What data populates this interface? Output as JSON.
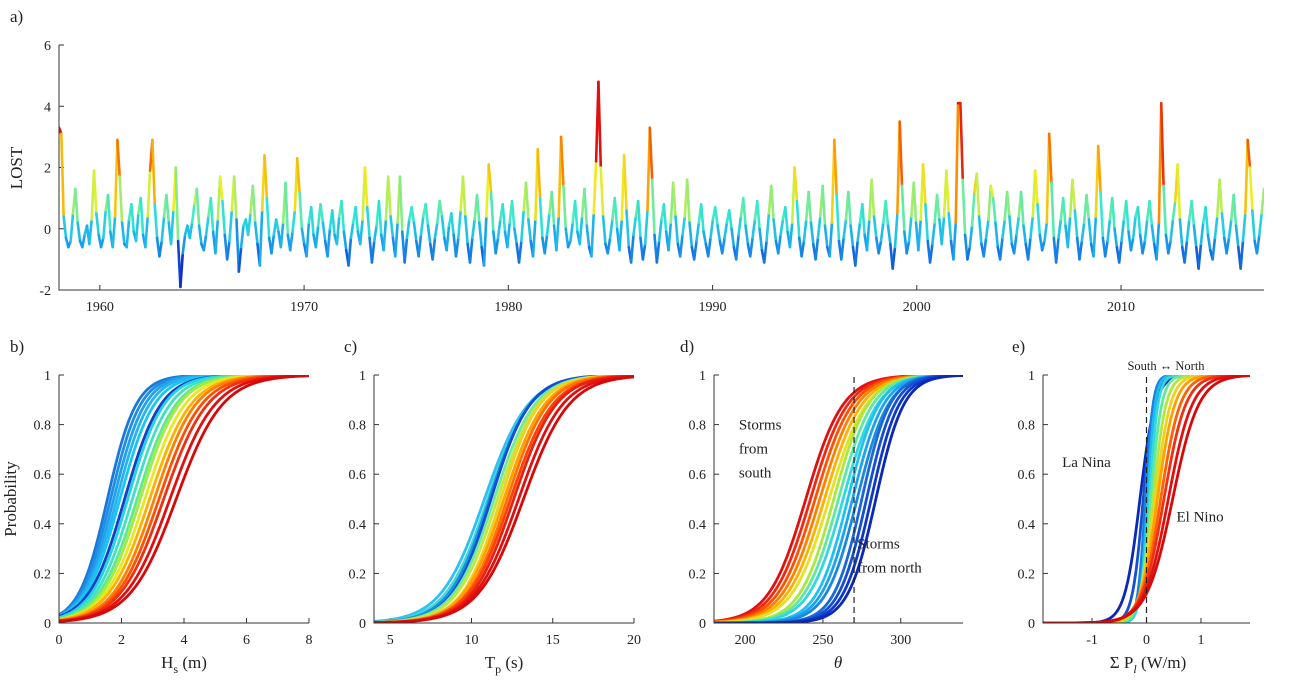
{
  "chart_data": [
    {
      "id": "a",
      "panel_label": "a)",
      "type": "line",
      "ylabel": "LOST",
      "xlim": [
        1958,
        2017
      ],
      "ylim": [
        -2,
        6
      ],
      "xticks": [
        1960,
        1970,
        1980,
        1990,
        2000,
        2010
      ],
      "yticks": [
        -2,
        0,
        2,
        4,
        6
      ],
      "colormap": [
        "#1030c8",
        "#18a0f0",
        "#30e8d8",
        "#f0f020",
        "#ff8c00",
        "#e01010"
      ],
      "series": [
        {
          "values": [
            3.3,
            3.1,
            0.4,
            -0.3,
            -0.6,
            -0.4,
            0.5,
            1.3,
            0.2,
            -0.4,
            -0.6,
            -0.2,
            0.1,
            -0.5,
            0.3,
            1.9,
            0.5,
            -0.2,
            -0.6,
            -0.3,
            0.6,
            1.1,
            -0.1,
            -0.6,
            0.4,
            2.9,
            1.7,
            0.2,
            -0.5,
            -0.6,
            0.3,
            0.8,
            -0.1,
            -0.4,
            0.5,
            1.0,
            -0.2,
            -0.6,
            0.4,
            1.9,
            2.9,
            0.8,
            -0.3,
            -0.9,
            -0.4,
            0.4,
            1.1,
            0.2,
            -0.5,
            0.6,
            2.0,
            -0.4,
            -1.9,
            -0.8,
            -0.2,
            0.1,
            -0.3,
            0.2,
            0.8,
            1.3,
            0.1,
            -0.5,
            -0.7,
            -0.2,
            0.4,
            1.0,
            -0.1,
            -0.8,
            0.3,
            1.7,
            0.9,
            -0.2,
            -1.0,
            -0.4,
            0.6,
            1.7,
            0.3,
            -1.4,
            -0.6,
            0.1,
            0.3,
            -0.2,
            0.5,
            1.4,
            0.2,
            -0.5,
            -1.2,
            0.6,
            2.4,
            1.0,
            -0.3,
            -0.8,
            -0.2,
            0.3,
            -0.1,
            -0.6,
            0.2,
            1.5,
            -0.2,
            -0.7,
            -0.1,
            0.6,
            2.3,
            1.2,
            0.0,
            -0.5,
            -0.9,
            0.2,
            0.7,
            -0.2,
            -0.6,
            0.1,
            0.8,
            0.2,
            -0.4,
            -0.9,
            0.0,
            0.6,
            -0.2,
            -0.5,
            0.4,
            0.9,
            -0.1,
            -0.7,
            -1.2,
            -0.3,
            0.2,
            0.7,
            -0.1,
            -0.5,
            0.3,
            2.0,
            0.7,
            -0.3,
            -1.1,
            -0.4,
            0.1,
            0.9,
            -0.2,
            -0.7,
            0.3,
            1.7,
            0.4,
            -0.3,
            -0.9,
            0.2,
            1.7,
            -0.1,
            -1.1,
            -0.3,
            0.3,
            0.7,
            0.2,
            -0.4,
            -0.9,
            -0.2,
            0.4,
            0.8,
            0.1,
            -0.5,
            -1.0,
            -0.3,
            0.2,
            0.9,
            0.4,
            -0.3,
            -0.7,
            0.1,
            0.5,
            -0.2,
            -0.9,
            -0.3,
            0.6,
            1.7,
            0.4,
            -0.5,
            -1.1,
            -0.3,
            0.3,
            1.1,
            0.2,
            -0.6,
            -1.2,
            0.4,
            2.1,
            1.2,
            -0.1,
            -0.8,
            -0.3,
            0.3,
            0.8,
            -0.1,
            -0.6,
            0.2,
            0.9,
            0.0,
            -0.5,
            -1.1,
            -0.4,
            0.6,
            1.5,
            0.3,
            -0.4,
            -0.9,
            0.3,
            2.6,
            1.0,
            -0.3,
            -0.8,
            -0.2,
            0.5,
            1.2,
            0.1,
            -0.7,
            0.4,
            3.0,
            1.4,
            0.0,
            -0.6,
            -0.4,
            0.2,
            0.9,
            -0.1,
            -0.5,
            0.4,
            1.3,
            0.1,
            -0.6,
            -0.9,
            0.5,
            2.2,
            4.8,
            2.0,
            0.4,
            -0.5,
            -0.8,
            -0.3,
            0.3,
            1.0,
            0.0,
            -0.7,
            0.3,
            2.4,
            0.6,
            -0.6,
            -1.1,
            -0.2,
            0.4,
            0.9,
            -0.3,
            -1.0,
            -0.5,
            0.6,
            3.3,
            1.6,
            -0.2,
            -1.1,
            -0.4,
            0.3,
            0.8,
            -0.1,
            -0.7,
            0.2,
            1.5,
            0.4,
            -0.5,
            -0.9,
            -0.2,
            0.4,
            1.6,
            0.2,
            -0.6,
            -1.0,
            -0.4,
            0.2,
            0.8,
            -0.1,
            -0.5,
            -0.9,
            -0.3,
            0.3,
            0.7,
            0.1,
            -0.4,
            -0.8,
            -0.3,
            0.2,
            0.6,
            0.0,
            -0.6,
            -1.0,
            -0.2,
            0.4,
            1.0,
            0.1,
            -0.5,
            -0.9,
            -0.3,
            0.3,
            0.9,
            0.0,
            -0.7,
            -1.1,
            -0.4,
            0.5,
            1.4,
            0.3,
            -0.4,
            -0.8,
            -0.2,
            0.3,
            0.7,
            -0.1,
            -0.6,
            0.2,
            2.0,
            0.9,
            -0.3,
            -0.9,
            -0.4,
            0.3,
            1.2,
            0.2,
            -0.5,
            -1.0,
            -0.3,
            0.4,
            1.4,
            0.1,
            -0.6,
            -0.9,
            0.2,
            2.9,
            1.1,
            -0.4,
            -1.0,
            -0.3,
            0.3,
            1.2,
            0.1,
            -0.6,
            -1.2,
            -0.4,
            0.2,
            0.8,
            -0.2,
            -0.7,
            0.3,
            1.6,
            0.4,
            -0.3,
            -0.8,
            -0.4,
            0.2,
            0.9,
            0.1,
            -0.5,
            -1.3,
            -0.6,
            0.5,
            3.5,
            1.4,
            -0.1,
            -0.8,
            -0.4,
            0.4,
            1.5,
            0.2,
            -0.7,
            0.3,
            2.1,
            0.8,
            -0.4,
            -1.1,
            -0.5,
            0.2,
            1.1,
            0.3,
            -0.5,
            0.4,
            1.9,
            0.5,
            -0.4,
            -1.0,
            0.2,
            4.1,
            4.1,
            1.6,
            -0.2,
            -1.0,
            -0.6,
            0.1,
            1.2,
            1.8,
            0.4,
            -0.5,
            -0.9,
            -0.3,
            0.3,
            1.4,
            1.0,
            0.2,
            -0.6,
            -1.0,
            -0.3,
            0.3,
            1.2,
            0.4,
            -0.5,
            -0.8,
            -0.2,
            0.4,
            1.2,
            0.1,
            -0.5,
            -1.0,
            -0.3,
            0.4,
            1.9,
            0.8,
            -0.2,
            -0.7,
            -0.4,
            0.2,
            3.1,
            1.5,
            -0.3,
            -1.1,
            -0.3,
            0.3,
            1.0,
            0.1,
            -0.6,
            0.4,
            1.6,
            0.6,
            -0.3,
            -1.0,
            -0.4,
            0.2,
            1.1,
            0.3,
            -0.5,
            -0.9,
            0.4,
            2.7,
            1.2,
            -0.3,
            -0.9,
            -0.4,
            0.3,
            1.0,
            0.0,
            -0.6,
            -1.1,
            -0.4,
            0.3,
            0.9,
            -0.1,
            -0.7,
            -0.3,
            0.4,
            0.7,
            -0.2,
            -0.8,
            -0.4,
            0.3,
            0.9,
            0.1,
            -0.5,
            -1.0,
            0.2,
            4.1,
            1.4,
            -0.2,
            -0.8,
            -0.4,
            0.3,
            0.9,
            2.1,
            0.3,
            -0.6,
            -1.1,
            -0.4,
            0.3,
            0.9,
            0.1,
            -0.6,
            -1.3,
            -0.5,
            0.2,
            0.7,
            -0.2,
            -0.7,
            -1.0,
            -0.3,
            0.4,
            1.6,
            0.5,
            -0.3,
            -0.8,
            -0.3,
            0.3,
            1.1,
            0.1,
            -0.6,
            -1.3,
            -0.4,
            0.5,
            2.9,
            2.0,
            0.6,
            -0.4,
            -0.8,
            -0.2,
            0.5,
            1.3
          ]
        }
      ]
    },
    {
      "id": "b",
      "panel_label": "b)",
      "type": "line",
      "xlabel_main": "H",
      "xlabel_sub": "s",
      "xlabel_unit": " (m)",
      "ylabel": "Probability",
      "xlim": [
        0,
        8
      ],
      "ylim": [
        0,
        1
      ],
      "xticks": [
        0,
        2,
        4,
        6,
        8
      ],
      "yticks": [
        0,
        0.2,
        0.4,
        0.6,
        0.8,
        1
      ],
      "ytick_labels": [
        "0",
        "0.2",
        "0.4",
        "0.6",
        "0.8",
        "1"
      ],
      "cdf_model": "logistic",
      "curves": [
        {
          "mu": 1.55,
          "s": 0.46,
          "color": "#1a78d8"
        },
        {
          "mu": 1.65,
          "s": 0.48,
          "color": "#1e8ee4"
        },
        {
          "mu": 1.75,
          "s": 0.5,
          "color": "#22a0ec"
        },
        {
          "mu": 1.85,
          "s": 0.52,
          "color": "#26b4f0"
        },
        {
          "mu": 1.95,
          "s": 0.55,
          "color": "#18c6f4"
        },
        {
          "mu": 2.1,
          "s": 0.58,
          "color": "#1040c8"
        },
        {
          "mu": 2.2,
          "s": 0.58,
          "color": "#20d4e8"
        },
        {
          "mu": 2.35,
          "s": 0.6,
          "color": "#40e0c0"
        },
        {
          "mu": 2.5,
          "s": 0.62,
          "color": "#60e890"
        },
        {
          "mu": 2.6,
          "s": 0.62,
          "color": "#a0ec40"
        },
        {
          "mu": 2.75,
          "s": 0.64,
          "color": "#e8e820"
        },
        {
          "mu": 2.9,
          "s": 0.66,
          "color": "#ffb000"
        },
        {
          "mu": 3.05,
          "s": 0.66,
          "color": "#ff8000"
        },
        {
          "mu": 3.2,
          "s": 0.68,
          "color": "#ff5000"
        },
        {
          "mu": 3.35,
          "s": 0.7,
          "color": "#f03010"
        },
        {
          "mu": 3.55,
          "s": 0.72,
          "color": "#e01010"
        },
        {
          "mu": 3.75,
          "s": 0.74,
          "color": "#d80808"
        }
      ]
    },
    {
      "id": "c",
      "panel_label": "c)",
      "type": "line",
      "xlabel_main": "T",
      "xlabel_sub": "p",
      "xlabel_unit": " (s)",
      "xlim": [
        4,
        20
      ],
      "ylim": [
        0,
        1
      ],
      "xticks": [
        5,
        10,
        15,
        20
      ],
      "yticks": [
        0,
        0.2,
        0.4,
        0.6,
        0.8,
        1
      ],
      "ytick_labels": [
        "0",
        "0.2",
        "0.4",
        "0.6",
        "0.8",
        "1"
      ],
      "cdf_model": "logistic",
      "curves": [
        {
          "mu": 10.8,
          "s": 1.35,
          "color": "#30c0f0"
        },
        {
          "mu": 11.0,
          "s": 1.3,
          "color": "#40d8e0"
        },
        {
          "mu": 11.1,
          "s": 1.25,
          "color": "#1a90e0"
        },
        {
          "mu": 11.2,
          "s": 1.2,
          "color": "#1050d0"
        },
        {
          "mu": 11.4,
          "s": 1.25,
          "color": "#70e8a0"
        },
        {
          "mu": 11.6,
          "s": 1.25,
          "color": "#c0e840"
        },
        {
          "mu": 11.8,
          "s": 1.2,
          "color": "#f0d020"
        },
        {
          "mu": 12.0,
          "s": 1.25,
          "color": "#ffa000"
        },
        {
          "mu": 12.2,
          "s": 1.25,
          "color": "#ff7000"
        },
        {
          "mu": 12.4,
          "s": 1.3,
          "color": "#ff4000"
        },
        {
          "mu": 12.6,
          "s": 1.3,
          "color": "#e82010"
        },
        {
          "mu": 12.9,
          "s": 1.35,
          "color": "#e01010"
        },
        {
          "mu": 13.2,
          "s": 1.4,
          "color": "#d80808"
        }
      ]
    },
    {
      "id": "d",
      "panel_label": "d)",
      "type": "line",
      "xlabel": "θ",
      "xlim": [
        180,
        340
      ],
      "ylim": [
        0,
        1
      ],
      "xticks": [
        200,
        250,
        300
      ],
      "yticks": [
        0,
        0.2,
        0.4,
        0.6,
        0.8,
        1
      ],
      "ytick_labels": [
        "0",
        "0.2",
        "0.4",
        "0.6",
        "0.8",
        "1"
      ],
      "cdf_model": "logistic",
      "vline": 270,
      "annotations": [
        {
          "lines": [
            "Storms",
            "from",
            "south"
          ],
          "x": 196,
          "y": 0.78
        },
        {
          "lines": [
            "Storms",
            "from north"
          ],
          "x": 272,
          "y": 0.3
        }
      ],
      "curves": [
        {
          "mu": 239,
          "s": 12,
          "color": "#e01010"
        },
        {
          "mu": 242,
          "s": 12,
          "color": "#f02810"
        },
        {
          "mu": 245,
          "s": 12,
          "color": "#ff5000"
        },
        {
          "mu": 248,
          "s": 12,
          "color": "#ff8000"
        },
        {
          "mu": 251,
          "s": 12,
          "color": "#ffb000"
        },
        {
          "mu": 254,
          "s": 12,
          "color": "#e8e020"
        },
        {
          "mu": 257,
          "s": 11,
          "color": "#a8e840"
        },
        {
          "mu": 260,
          "s": 11,
          "color": "#60e8a0"
        },
        {
          "mu": 263,
          "s": 11,
          "color": "#30d8e0"
        },
        {
          "mu": 266,
          "s": 10,
          "color": "#20c0f0"
        },
        {
          "mu": 269,
          "s": 10,
          "color": "#1aa4ec"
        },
        {
          "mu": 272,
          "s": 10,
          "color": "#1a88e0"
        },
        {
          "mu": 275,
          "s": 9,
          "color": "#1868d8"
        },
        {
          "mu": 278,
          "s": 9,
          "color": "#1450d0"
        },
        {
          "mu": 281,
          "s": 9,
          "color": "#1038c8"
        },
        {
          "mu": 284,
          "s": 9,
          "color": "#0c28b8"
        }
      ]
    },
    {
      "id": "e",
      "panel_label": "e)",
      "type": "line",
      "xlabel": "Σ P",
      "xlabel_sub": "l",
      "xlabel_unit": " (W/m)",
      "top_label": "South ↔ North",
      "xlim": [
        -1.9,
        1.9
      ],
      "ylim": [
        0,
        1
      ],
      "xticks": [
        -1,
        0,
        1
      ],
      "yticks": [
        0,
        0.2,
        0.4,
        0.6,
        0.8,
        1
      ],
      "ytick_labels": [
        "0",
        "0.2",
        "0.4",
        "0.6",
        "0.8",
        "1"
      ],
      "cdf_model": "logistic",
      "vline": 0,
      "annotations": [
        {
          "lines": [
            "La Nina"
          ],
          "x": -1.55,
          "y": 0.63
        },
        {
          "lines": [
            "El Nino"
          ],
          "x": 0.55,
          "y": 0.41
        }
      ],
      "curves": [
        {
          "mu": -0.12,
          "s": 0.14,
          "color": "#0c28b8"
        },
        {
          "mu": -0.06,
          "s": 0.1,
          "color": "#1450d0"
        },
        {
          "mu": -0.02,
          "s": 0.07,
          "color": "#1a80e0"
        },
        {
          "mu": 0.02,
          "s": 0.07,
          "color": "#20b8f0"
        },
        {
          "mu": 0.05,
          "s": 0.08,
          "color": "#30d8e0"
        },
        {
          "mu": 0.08,
          "s": 0.1,
          "color": "#60e8a0"
        },
        {
          "mu": 0.12,
          "s": 0.12,
          "color": "#b0e840"
        },
        {
          "mu": 0.16,
          "s": 0.14,
          "color": "#f0d020"
        },
        {
          "mu": 0.2,
          "s": 0.16,
          "color": "#ffa000"
        },
        {
          "mu": 0.26,
          "s": 0.18,
          "color": "#ff6000"
        },
        {
          "mu": 0.32,
          "s": 0.2,
          "color": "#f03010"
        },
        {
          "mu": 0.4,
          "s": 0.22,
          "color": "#e01010"
        },
        {
          "mu": 0.48,
          "s": 0.24,
          "color": "#d80808"
        }
      ]
    }
  ]
}
